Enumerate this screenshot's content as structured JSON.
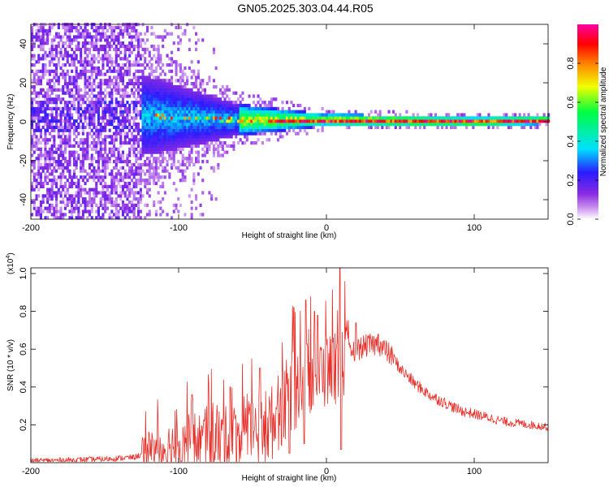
{
  "title": "GN05.2025.303.04.44.R05",
  "chart_data": [
    {
      "type": "heatmap",
      "title": "GN05.2025.303.04.44.R05",
      "xlabel": "Height of straight line (km)",
      "ylabel": "Frequency (Hz)",
      "xlim": [
        -200,
        150
      ],
      "ylim": [
        -50,
        50
      ],
      "xticks": [
        -200,
        -100,
        0,
        100
      ],
      "yticks": [
        -40,
        -20,
        0,
        20,
        40
      ],
      "colorbar": {
        "label": "Normalized spectral amplitude",
        "range": [
          0,
          1
        ],
        "ticks": [
          0.0,
          0.2,
          0.4,
          0.6,
          0.8
        ],
        "colors": [
          "#ffffff",
          "#c98ff0",
          "#8a2be2",
          "#2a1cff",
          "#00e0ff",
          "#00ff40",
          "#f0ff00",
          "#ff8000",
          "#ff0000",
          "#ff00a0"
        ]
      },
      "features": {
        "noise_region_km": [
          -200,
          -125
        ],
        "signal_center_hz": [
          [
            -120,
            3
          ],
          [
            -60,
            1
          ],
          [
            0,
            1
          ],
          [
            100,
            0
          ],
          [
            150,
            1
          ]
        ],
        "band_halfwidth_hz": [
          [
            -120,
            20
          ],
          [
            -60,
            8
          ],
          [
            0,
            3
          ],
          [
            150,
            2
          ]
        ]
      }
    },
    {
      "type": "line",
      "xlabel": "Height of straight line (km)",
      "ylabel": "SNR (10 * v/v)",
      "y_multiplier": "(x10^4)",
      "xlim": [
        -200,
        150
      ],
      "ylim": [
        0,
        1.03
      ],
      "xticks": [
        -200,
        -100,
        0,
        100
      ],
      "yticks": [
        0.2,
        0.4,
        0.6,
        0.8,
        1.0
      ],
      "series": [
        {
          "name": "SNR",
          "color": "#e8312b",
          "envelope_x": [
            -200,
            -150,
            -130,
            -120,
            -110,
            -100,
            -90,
            -80,
            -70,
            -60,
            -50,
            -40,
            -35,
            -30,
            -25,
            -20,
            -15,
            -10,
            -5,
            0,
            5,
            10,
            15,
            20,
            25,
            30,
            35,
            40,
            45,
            50,
            60,
            70,
            80,
            90,
            100,
            110,
            120,
            130,
            140,
            150
          ],
          "envelope_y": [
            0.01,
            0.02,
            0.03,
            0.06,
            0.09,
            0.11,
            0.13,
            0.13,
            0.14,
            0.15,
            0.16,
            0.2,
            0.25,
            0.32,
            0.38,
            0.42,
            0.45,
            0.48,
            0.5,
            0.5,
            0.52,
            0.56,
            0.58,
            0.6,
            0.62,
            0.63,
            0.63,
            0.6,
            0.56,
            0.5,
            0.42,
            0.36,
            0.32,
            0.28,
            0.26,
            0.24,
            0.22,
            0.21,
            0.2,
            0.19
          ],
          "peaks": [
            [
              -91,
              0.36
            ],
            [
              -65,
              0.4
            ],
            [
              -45,
              0.5
            ],
            [
              -25,
              0.87
            ],
            [
              -22,
              0.82
            ],
            [
              -14,
              0.86
            ],
            [
              -8,
              0.8
            ],
            [
              -6,
              0.78
            ],
            [
              9,
              1.03
            ],
            [
              10,
              0.85
            ],
            [
              20,
              0.74
            ],
            [
              28,
              0.67
            ],
            [
              35,
              0.68
            ]
          ],
          "dips": [
            [
              -25,
              0.05
            ],
            [
              -15,
              0.1
            ],
            [
              10,
              0.07
            ]
          ]
        }
      ]
    }
  ]
}
